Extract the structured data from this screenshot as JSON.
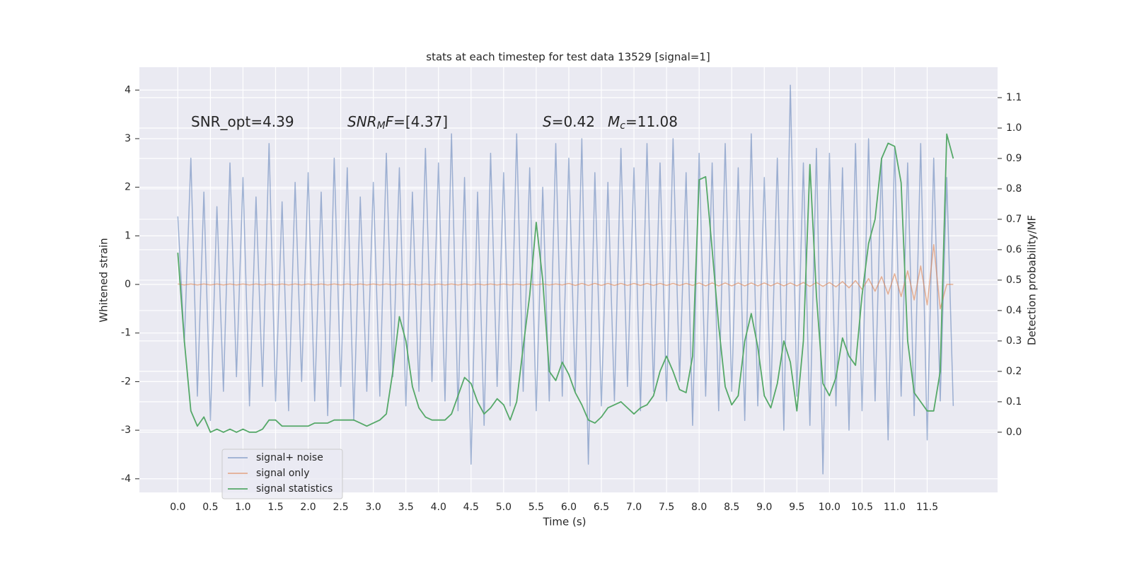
{
  "chart_data": {
    "type": "line",
    "title": "stats at each timestep for test data 13529 [signal=1]",
    "xlabel": "Time (s)",
    "ylabel": "Whitened strain",
    "y2label": "Detection probability/MF",
    "annotations": [
      [
        {
          "text": "SNR_opt=4.39"
        }
      ],
      [
        {
          "text": "SNR",
          "italic": true
        },
        {
          "text": "M",
          "italic": true,
          "sub": true
        },
        {
          "text": "F",
          "italic": true
        },
        {
          "text": "=[4.37]"
        }
      ],
      [
        {
          "text": "S",
          "italic": true
        },
        {
          "text": "=0.42"
        }
      ],
      [
        {
          "text": "M",
          "italic": true
        },
        {
          "text": "c",
          "italic": true,
          "sub": true
        },
        {
          "text": "=11.08"
        }
      ]
    ],
    "xlim": [
      -0.59,
      12.58
    ],
    "ylim": [
      -4.28,
      4.47
    ],
    "y2lim": [
      -0.198,
      1.2
    ],
    "grid": true,
    "legend": "lower left",
    "xticks": [
      {
        "value": 0,
        "label": "0.0"
      },
      {
        "value": 0.5,
        "label": "0.5"
      },
      {
        "value": 1,
        "label": "1.0"
      },
      {
        "value": 1.5,
        "label": "1.5"
      },
      {
        "value": 2,
        "label": "2.0"
      },
      {
        "value": 2.5,
        "label": "2.5"
      },
      {
        "value": 3,
        "label": "3.0"
      },
      {
        "value": 3.5,
        "label": "3.5"
      },
      {
        "value": 4,
        "label": "4.0"
      },
      {
        "value": 4.5,
        "label": "4.5"
      },
      {
        "value": 5,
        "label": "5.0"
      },
      {
        "value": 5.5,
        "label": "5.5"
      },
      {
        "value": 6,
        "label": "6.0"
      },
      {
        "value": 6.5,
        "label": "6.5"
      },
      {
        "value": 7,
        "label": "7.0"
      },
      {
        "value": 7.5,
        "label": "7.5"
      },
      {
        "value": 8,
        "label": "8.0"
      },
      {
        "value": 8.5,
        "label": "8.5"
      },
      {
        "value": 9,
        "label": "9.0"
      },
      {
        "value": 9.5,
        "label": "9.5"
      },
      {
        "value": 10,
        "label": "10.0"
      },
      {
        "value": 10.5,
        "label": "10.5"
      },
      {
        "value": 11,
        "label": "11.0"
      },
      {
        "value": 11.5,
        "label": "11.5"
      }
    ],
    "yticks": [
      -4,
      -3,
      -2,
      -1,
      0,
      1,
      2,
      3,
      4
    ],
    "y2ticks": [
      {
        "value": 0,
        "label": "0.0"
      },
      {
        "value": 0.1,
        "label": "0.1"
      },
      {
        "value": 0.2,
        "label": "0.2"
      },
      {
        "value": 0.3,
        "label": "0.3"
      },
      {
        "value": 0.4,
        "label": "0.4"
      },
      {
        "value": 0.5,
        "label": "0.5"
      },
      {
        "value": 0.6,
        "label": "0.6"
      },
      {
        "value": 0.7,
        "label": "0.7"
      },
      {
        "value": 0.8,
        "label": "0.8"
      },
      {
        "value": 0.9,
        "label": "0.9"
      },
      {
        "value": 1,
        "label": "1.0"
      },
      {
        "value": 1.1,
        "label": "1.1"
      }
    ],
    "x": [
      0,
      0.1,
      0.2,
      0.3,
      0.4,
      0.5,
      0.6,
      0.7,
      0.8,
      0.9,
      1,
      1.1,
      1.2,
      1.3,
      1.4,
      1.5,
      1.6,
      1.7,
      1.8,
      1.9,
      2,
      2.1,
      2.2,
      2.3,
      2.4,
      2.5,
      2.6,
      2.7,
      2.8,
      2.9,
      3,
      3.1,
      3.2,
      3.3,
      3.4,
      3.5,
      3.6,
      3.7,
      3.8,
      3.9,
      4,
      4.1,
      4.2,
      4.3,
      4.4,
      4.5,
      4.6,
      4.7,
      4.8,
      4.9,
      5,
      5.1,
      5.2,
      5.3,
      5.4,
      5.5,
      5.6,
      5.7,
      5.8,
      5.9,
      6,
      6.1,
      6.2,
      6.3,
      6.4,
      6.5,
      6.6,
      6.7,
      6.8,
      6.9,
      7,
      7.1,
      7.2,
      7.3,
      7.4,
      7.5,
      7.6,
      7.7,
      7.8,
      7.9,
      8,
      8.1,
      8.2,
      8.3,
      8.4,
      8.5,
      8.6,
      8.7,
      8.8,
      8.9,
      9,
      9.1,
      9.2,
      9.3,
      9.4,
      9.5,
      9.6,
      9.7,
      9.8,
      9.9,
      10,
      10.1,
      10.2,
      10.3,
      10.4,
      10.5,
      10.6,
      10.7,
      10.8,
      10.9,
      11,
      11.1,
      11.2,
      11.3,
      11.4,
      11.5,
      11.6,
      11.7,
      11.8,
      11.9
    ],
    "series": [
      {
        "name": "signal+ noise",
        "color": "#4c72b0",
        "alpha": 0.5,
        "values": [
          1.4,
          -1.2,
          2.6,
          -2.3,
          1.9,
          -2.8,
          1.6,
          -2.2,
          2.5,
          -1.9,
          2.2,
          -2.5,
          1.8,
          -2.1,
          2.9,
          -2.4,
          1.7,
          -2.6,
          2.1,
          -2.0,
          2.3,
          -2.4,
          1.9,
          -2.7,
          2.6,
          -2.1,
          2.4,
          -2.8,
          1.8,
          -2.2,
          2.1,
          -2.3,
          2.7,
          -1.9,
          2.4,
          -2.5,
          1.9,
          -2.2,
          2.8,
          -2.0,
          2.5,
          -2.4,
          3.1,
          -2.6,
          2.2,
          -3.7,
          1.9,
          -2.9,
          2.7,
          -2.1,
          2.3,
          -2.5,
          3.1,
          -2.2,
          2.4,
          -2.6,
          2.0,
          -2.4,
          2.9,
          -2.3,
          2.6,
          -2.2,
          3.0,
          -3.7,
          2.3,
          -2.5,
          2.1,
          -2.4,
          2.8,
          -2.1,
          2.4,
          -2.6,
          2.9,
          -2.2,
          2.5,
          -2.4,
          3.0,
          -2.0,
          2.3,
          -2.9,
          2.7,
          -2.3,
          2.5,
          -2.6,
          2.9,
          -2.2,
          2.4,
          -2.8,
          3.1,
          -2.5,
          2.2,
          -2.4,
          2.6,
          -3.0,
          4.1,
          -2.3,
          2.5,
          -2.9,
          2.8,
          -3.9,
          2.7,
          -2.5,
          2.4,
          -3.0,
          2.9,
          -2.6,
          3.0,
          -2.4,
          2.6,
          -3.2,
          2.8,
          -2.3,
          2.5,
          -2.7,
          2.9,
          -3.2,
          2.6,
          -2.4,
          2.2,
          -2.5
        ]
      },
      {
        "name": "signal only",
        "color": "#dd8452",
        "alpha": 0.6,
        "values": [
          0.01,
          -0.01,
          0.01,
          -0.01,
          0.01,
          -0.01,
          0.01,
          -0.01,
          0.01,
          -0.01,
          0.01,
          -0.01,
          0.01,
          -0.01,
          0.01,
          -0.01,
          0.01,
          -0.01,
          0.01,
          -0.01,
          0.01,
          -0.01,
          0.01,
          -0.01,
          0.01,
          -0.01,
          0.01,
          -0.01,
          0.01,
          -0.01,
          0.01,
          -0.01,
          0.01,
          -0.01,
          0.01,
          -0.01,
          0.01,
          -0.01,
          0.01,
          -0.01,
          0.01,
          -0.01,
          0.01,
          -0.01,
          0.01,
          -0.01,
          0.01,
          -0.01,
          0.01,
          -0.01,
          0.01,
          -0.01,
          0.01,
          -0.01,
          0.01,
          -0.01,
          0.01,
          -0.01,
          0.01,
          -0.01,
          0.02,
          -0.02,
          0.02,
          -0.02,
          0.02,
          -0.02,
          0.02,
          -0.02,
          0.02,
          -0.02,
          0.02,
          -0.02,
          0.02,
          -0.02,
          0.02,
          -0.02,
          0.02,
          -0.02,
          0.02,
          -0.02,
          0.03,
          -0.03,
          0.03,
          -0.03,
          0.03,
          -0.03,
          0.03,
          -0.03,
          0.03,
          -0.03,
          0.03,
          -0.03,
          0.03,
          -0.03,
          0.03,
          -0.03,
          0.04,
          -0.04,
          0.04,
          -0.04,
          0.04,
          -0.05,
          0.06,
          -0.07,
          0.08,
          -0.1,
          0.12,
          -0.14,
          0.16,
          -0.2,
          0.22,
          -0.25,
          0.28,
          -0.32,
          0.38,
          -0.42,
          0.82,
          -0.5,
          0,
          0
        ]
      },
      {
        "name": "signal statistics",
        "color": "#55a868",
        "axis": "y2",
        "values": [
          0.59,
          0.3,
          0.07,
          0.02,
          0.05,
          0.0,
          0.01,
          0.0,
          0.01,
          0.0,
          0.01,
          0.0,
          0.0,
          0.01,
          0.04,
          0.04,
          0.02,
          0.02,
          0.02,
          0.02,
          0.02,
          0.03,
          0.03,
          0.03,
          0.04,
          0.04,
          0.04,
          0.04,
          0.03,
          0.02,
          0.03,
          0.04,
          0.06,
          0.2,
          0.38,
          0.3,
          0.15,
          0.08,
          0.05,
          0.04,
          0.04,
          0.04,
          0.06,
          0.12,
          0.18,
          0.16,
          0.1,
          0.06,
          0.08,
          0.11,
          0.09,
          0.04,
          0.1,
          0.28,
          0.45,
          0.69,
          0.5,
          0.2,
          0.17,
          0.23,
          0.19,
          0.13,
          0.09,
          0.04,
          0.03,
          0.05,
          0.08,
          0.09,
          0.1,
          0.08,
          0.06,
          0.08,
          0.09,
          0.12,
          0.2,
          0.25,
          0.2,
          0.14,
          0.13,
          0.25,
          0.83,
          0.84,
          0.6,
          0.35,
          0.15,
          0.09,
          0.12,
          0.3,
          0.39,
          0.28,
          0.12,
          0.08,
          0.16,
          0.3,
          0.23,
          0.07,
          0.3,
          0.88,
          0.45,
          0.16,
          0.12,
          0.18,
          0.31,
          0.25,
          0.22,
          0.45,
          0.62,
          0.7,
          0.9,
          0.95,
          0.94,
          0.82,
          0.3,
          0.13,
          0.1,
          0.07,
          0.07,
          0.2,
          0.98,
          0.9
        ]
      }
    ]
  }
}
